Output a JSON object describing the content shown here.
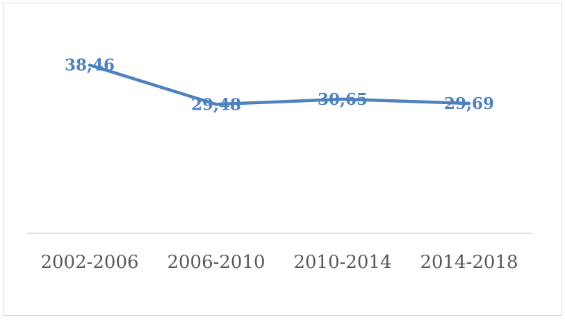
{
  "chart_data": {
    "type": "line",
    "categories": [
      "2002-2006",
      "2006-2010",
      "2010-2014",
      "2014-2018"
    ],
    "series": [
      {
        "values": [
          38.46,
          29.48,
          30.65,
          29.69
        ],
        "labels": [
          "38,46",
          "29,48",
          "30,65",
          "29,69"
        ],
        "color": "#4f81bd"
      }
    ],
    "title": "",
    "xlabel": "",
    "ylabel": "",
    "ylim": [
      0,
      45
    ],
    "grid": false,
    "legend": "none",
    "axis_color": "#d9d9d9",
    "tick_label_color": "#595959"
  }
}
